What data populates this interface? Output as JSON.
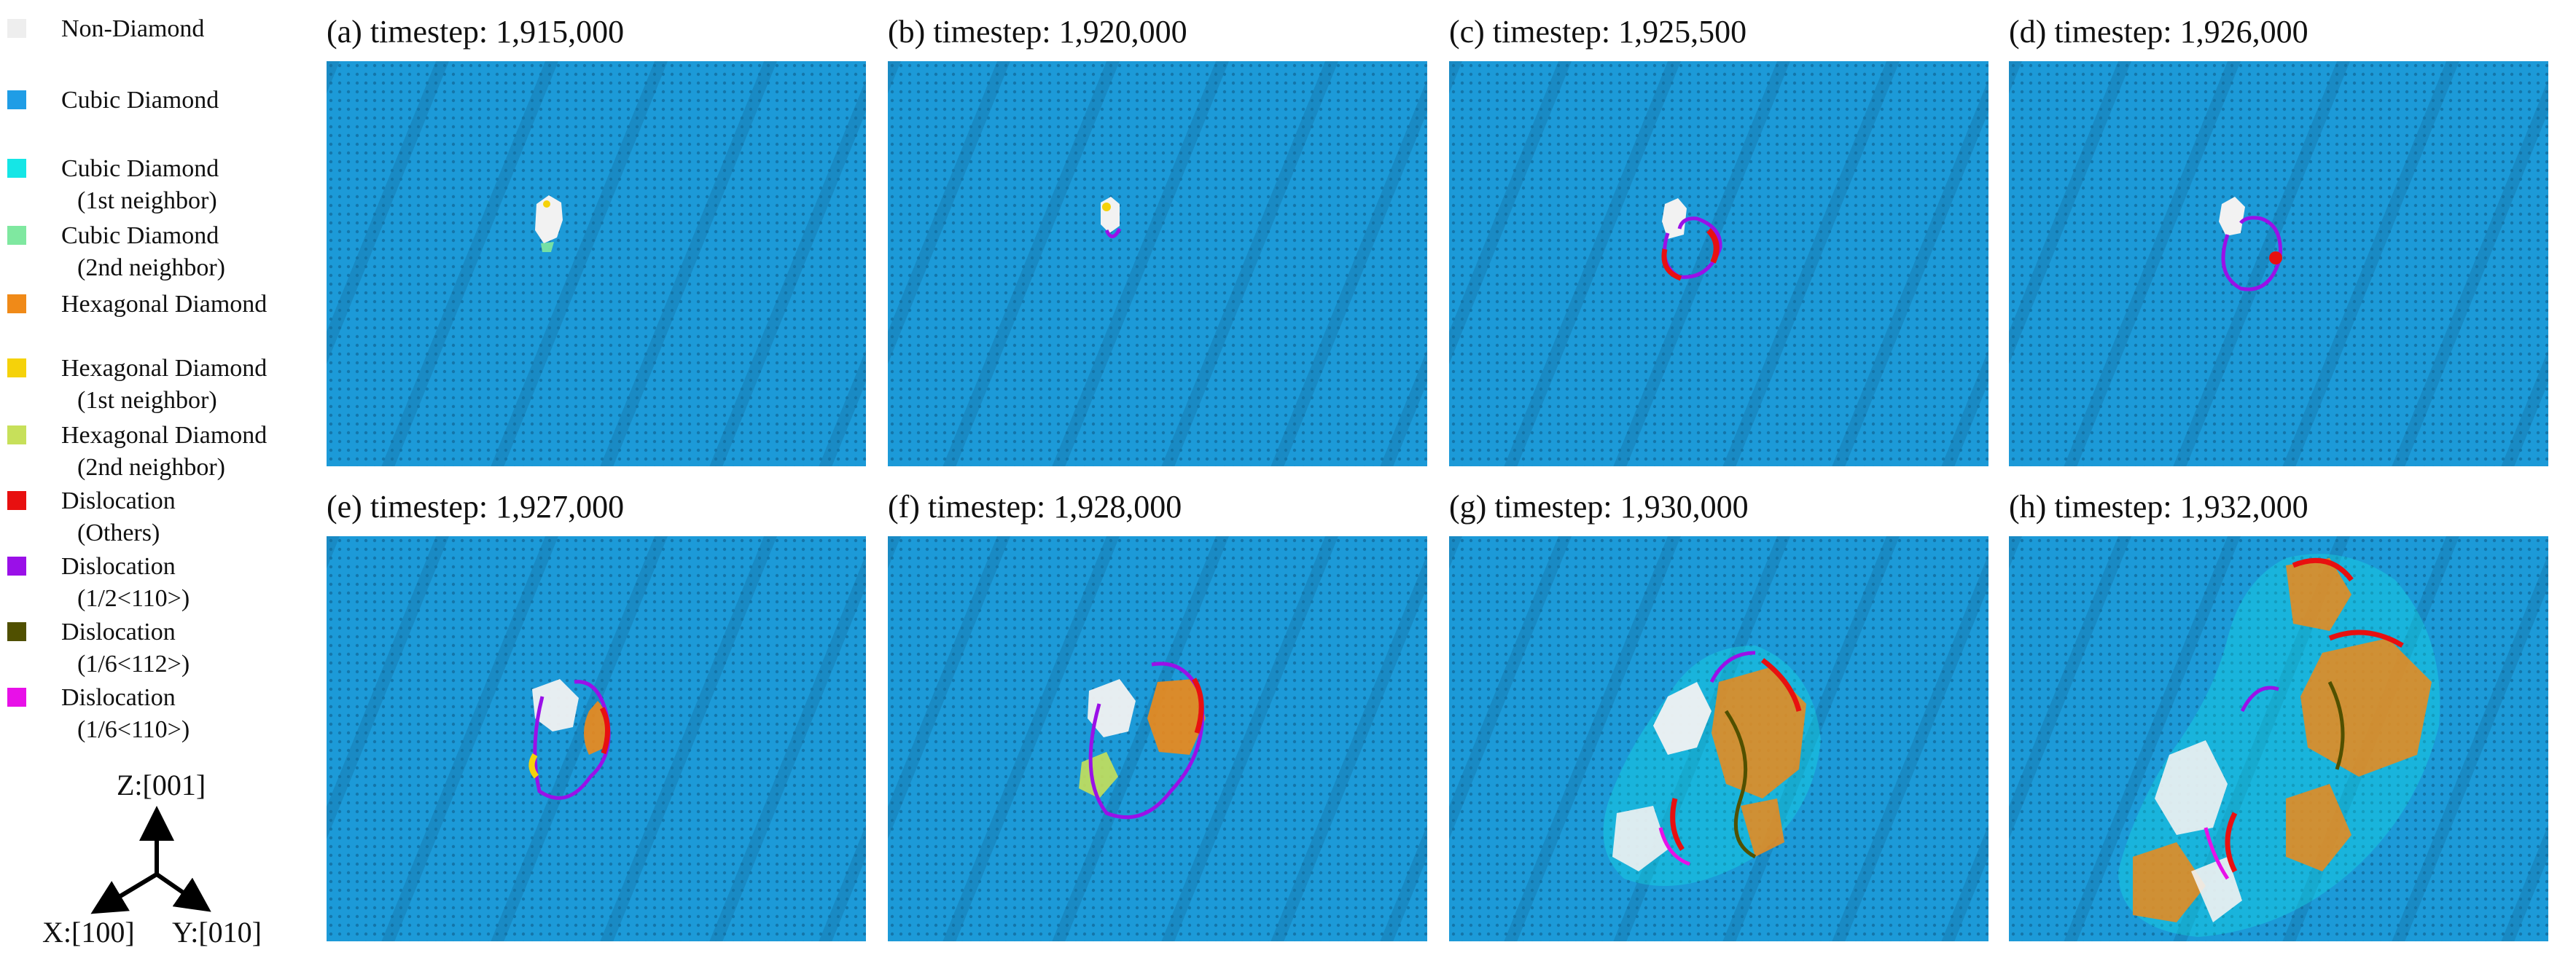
{
  "legend": {
    "items": [
      {
        "name": "non-diamond",
        "line1": "Non-Diamond",
        "line2": "",
        "color": "#eeeeee"
      },
      {
        "name": "cubic-diamond",
        "line1": "Cubic Diamond",
        "line2": "",
        "color": "#1f9de6"
      },
      {
        "name": "cubic-diamond-1st",
        "line1": "Cubic Diamond",
        "line2": "(1st neighbor)",
        "color": "#15e6e6"
      },
      {
        "name": "cubic-diamond-2nd",
        "line1": "Cubic Diamond",
        "line2": "(2nd neighbor)",
        "color": "#7fe8a0"
      },
      {
        "name": "hexagonal-diamond",
        "line1": "Hexagonal Diamond",
        "line2": "",
        "color": "#f08a18"
      },
      {
        "name": "hexagonal-diamond-1st",
        "line1": "Hexagonal Diamond",
        "line2": "(1st neighbor)",
        "color": "#f5d20a"
      },
      {
        "name": "hexagonal-diamond-2nd",
        "line1": "Hexagonal Diamond",
        "line2": "(2nd neighbor)",
        "color": "#c7e05a"
      },
      {
        "name": "dislocation-others",
        "line1": "Dislocation",
        "line2": "(Others)",
        "color": "#e81010"
      },
      {
        "name": "dislocation-half-110",
        "line1": "Dislocation",
        "line2": "(1/2<110>)",
        "color": "#9a10e8"
      },
      {
        "name": "dislocation-sixth-112",
        "line1": "Dislocation",
        "line2": "(1/6<112>)",
        "color": "#505000"
      },
      {
        "name": "dislocation-sixth-110",
        "line1": "Dislocation",
        "line2": "(1/6<110>)",
        "color": "#e810e8"
      }
    ]
  },
  "axes": {
    "z": "Z:[001]",
    "x": "X:[100]",
    "y": "Y:[010]"
  },
  "panels": [
    {
      "label": "(a)",
      "title": "timestep: 1,915,000"
    },
    {
      "label": "(b)",
      "title": "timestep: 1,920,000"
    },
    {
      "label": "(c)",
      "title": "timestep: 1,925,500"
    },
    {
      "label": "(d)",
      "title": "timestep: 1,926,000"
    },
    {
      "label": "(e)",
      "title": "timestep: 1,927,000"
    },
    {
      "label": "(f)",
      "title": "timestep: 1,928,000"
    },
    {
      "label": "(g)",
      "title": "timestep: 1,930,000"
    },
    {
      "label": "(h)",
      "title": "timestep: 1,932,000"
    }
  ]
}
